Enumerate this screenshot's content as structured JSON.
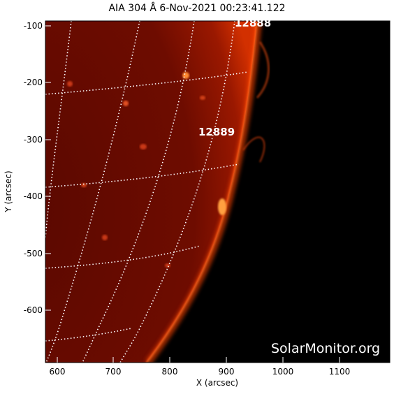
{
  "header": {
    "title": "AIA 304 Å   6-Nov-2021 00:23:41.122"
  },
  "axes": {
    "x_label": "X (arcsec)",
    "y_label": "Y (arcsec)",
    "x_ticks": [
      "600",
      "700",
      "800",
      "900",
      "1000",
      "1100"
    ],
    "y_ticks": [
      "-100",
      "-200",
      "-300",
      "-400",
      "-500",
      "-600"
    ]
  },
  "regions": [
    {
      "id": "12888"
    },
    {
      "id": "12889"
    }
  ],
  "watermark": "SolarMonitor.org",
  "colors": {
    "background": "#000000",
    "solar_disk": "#7a0d00",
    "limb_glow": "#ff3a00",
    "grid": "#ffffff"
  }
}
